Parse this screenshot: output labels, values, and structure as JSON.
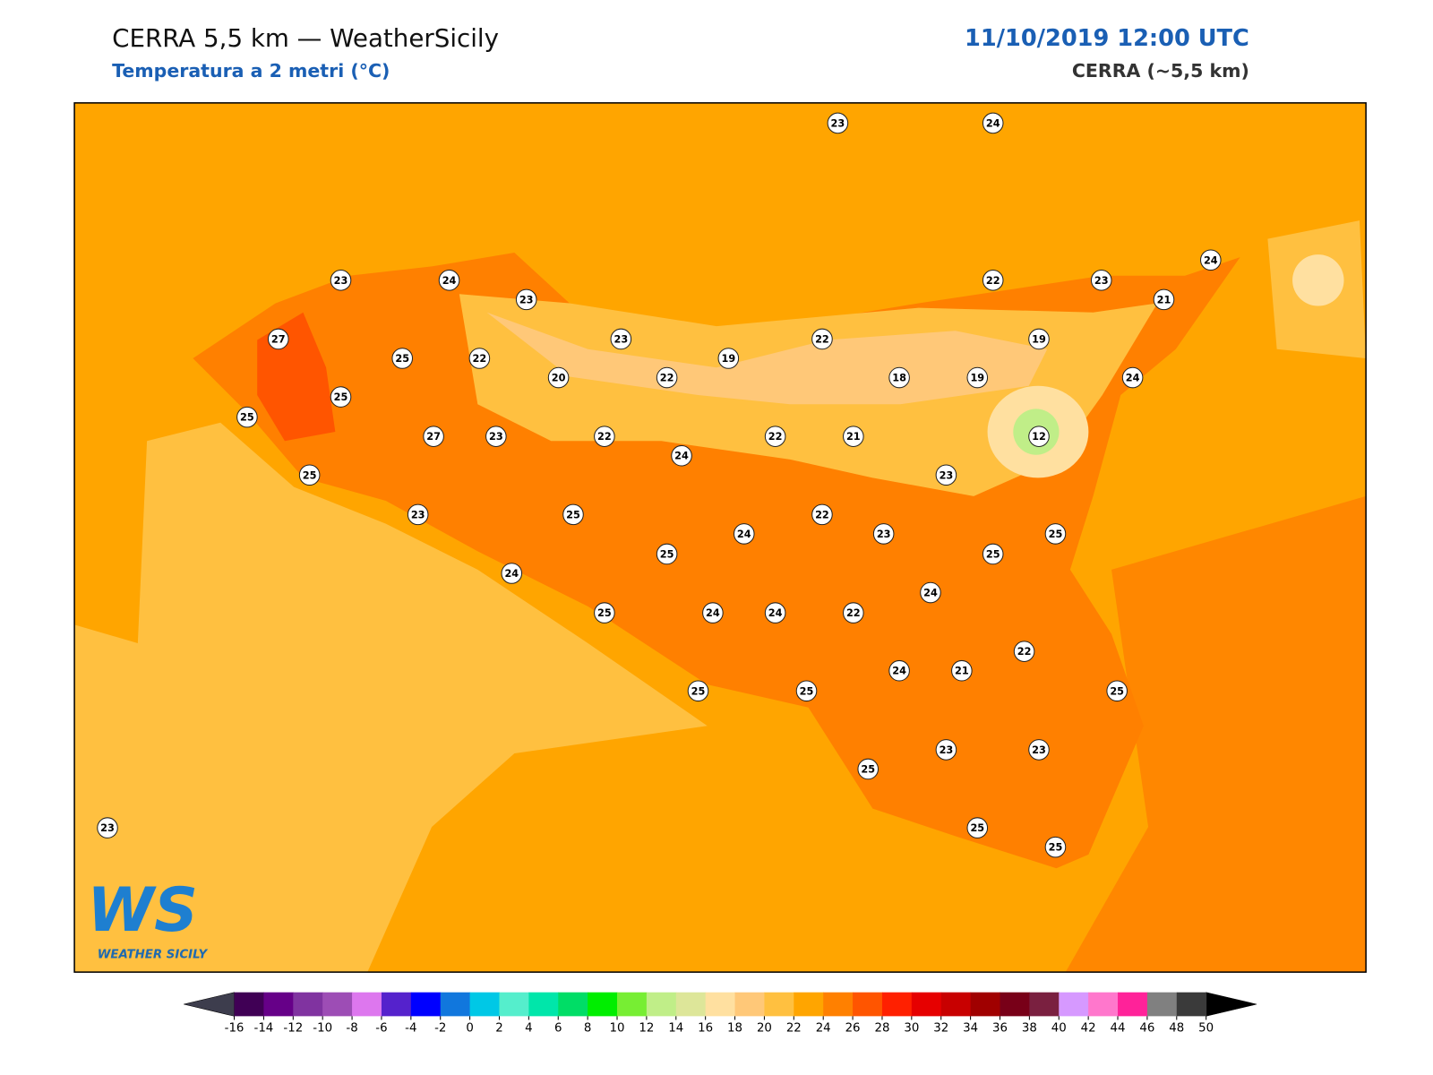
{
  "header": {
    "title": "CERRA 5,5 km — WeatherSicily",
    "subtitle": "Temperatura a 2 metri (°C)",
    "datetime": "11/10/2019 12:00 UTC",
    "model": "CERRA (~5,5 km)"
  },
  "stations": [
    23,
    24,
    23,
    24,
    23,
    22,
    23,
    24,
    21,
    27,
    25,
    22,
    23,
    19,
    22,
    19,
    25,
    20,
    22,
    18,
    19,
    24,
    25,
    27,
    23,
    22,
    22,
    21,
    12,
    24,
    25,
    23,
    23,
    25,
    22,
    24,
    23,
    25,
    25,
    25,
    24,
    24,
    25,
    24,
    24,
    22,
    22,
    24,
    21,
    25,
    25,
    25,
    23,
    23,
    25,
    23,
    25,
    25
  ],
  "colorbar": {
    "ticks": [
      -16,
      -14,
      -12,
      -10,
      -8,
      -6,
      -4,
      -2,
      0,
      2,
      4,
      6,
      8,
      10,
      12,
      14,
      16,
      18,
      20,
      22,
      24,
      26,
      28,
      30,
      32,
      34,
      36,
      38,
      40,
      42,
      44,
      46,
      48,
      50
    ],
    "colors": [
      "#400055",
      "#660088",
      "#8033a0",
      "#9d4db5",
      "#dd77ee",
      "#5522cc",
      "#0000ff",
      "#1177dd",
      "#00c8e6",
      "#55eecc",
      "#00e6aa",
      "#00dd66",
      "#00ee00",
      "#77ee33",
      "#c0ee88",
      "#dde699",
      "#ffe0a0",
      "#ffc878",
      "#ffc040",
      "#ffa500",
      "#ff8000",
      "#ff5500",
      "#ff2000",
      "#e60000",
      "#c80000",
      "#a00000",
      "#780018",
      "#7a2040",
      "#d699ff",
      "#ff77cc",
      "#ff2299",
      "#808080",
      "#3a3a3a"
    ],
    "under_color": "#3d3d4d",
    "over_color": "#000000"
  },
  "logo": {
    "mark": "WS",
    "name": "WEATHER SICILY"
  }
}
